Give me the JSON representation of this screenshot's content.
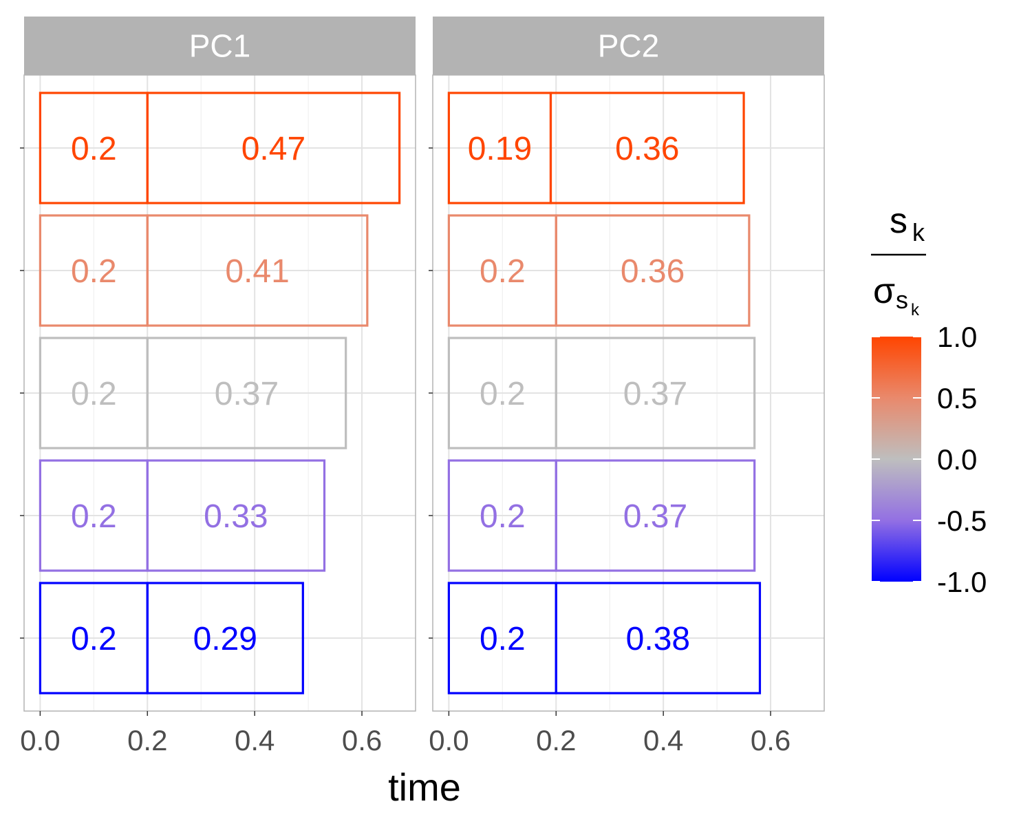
{
  "chart_data": {
    "type": "bar",
    "orientation": "horizontal",
    "stacked": true,
    "xlabel": "time",
    "xlim": [
      -0.03,
      0.7
    ],
    "xticks": [
      "0.0",
      "0.2",
      "0.4",
      "0.6"
    ],
    "xtick_values": [
      0.0,
      0.2,
      0.4,
      0.6
    ],
    "grid": true,
    "legend": {
      "title_numerator": "s",
      "title_numerator_sub": "k",
      "title_denominator": "σ",
      "title_denominator_sub": "s",
      "title_denominator_subsub": "k",
      "ticks": [
        "1.0",
        "0.5",
        "0.0",
        "-0.5",
        "-1.0"
      ],
      "tick_values": [
        1.0,
        0.5,
        0.0,
        -0.5,
        -1.0
      ],
      "range": [
        -1.0,
        1.0
      ],
      "placement": "right",
      "colors": {
        "low": "#0000ff",
        "mid": "#bebebe",
        "high": "#ff4500"
      }
    },
    "panels": [
      {
        "name": "PC1",
        "rows": [
          {
            "score": 1.0,
            "color": "#ff4500",
            "segments": [
              {
                "start": 0.0,
                "value": 0.2,
                "label": "0.2"
              },
              {
                "start": 0.2,
                "value": 0.47,
                "label": "0.47"
              }
            ]
          },
          {
            "score": 0.5,
            "color": "#e9896c",
            "segments": [
              {
                "start": 0.0,
                "value": 0.2,
                "label": "0.2"
              },
              {
                "start": 0.2,
                "value": 0.41,
                "label": "0.41"
              }
            ]
          },
          {
            "score": 0.0,
            "color": "#bebebe",
            "segments": [
              {
                "start": 0.0,
                "value": 0.2,
                "label": "0.2"
              },
              {
                "start": 0.2,
                "value": 0.37,
                "label": "0.37"
              }
            ]
          },
          {
            "score": -0.5,
            "color": "#9370e3",
            "segments": [
              {
                "start": 0.0,
                "value": 0.2,
                "label": "0.2"
              },
              {
                "start": 0.2,
                "value": 0.33,
                "label": "0.33"
              }
            ]
          },
          {
            "score": -1.0,
            "color": "#0000ff",
            "segments": [
              {
                "start": 0.0,
                "value": 0.2,
                "label": "0.2"
              },
              {
                "start": 0.2,
                "value": 0.29,
                "label": "0.29"
              }
            ]
          }
        ]
      },
      {
        "name": "PC2",
        "rows": [
          {
            "score": 1.0,
            "color": "#ff4500",
            "segments": [
              {
                "start": 0.0,
                "value": 0.19,
                "label": "0.19"
              },
              {
                "start": 0.19,
                "value": 0.36,
                "label": "0.36"
              }
            ]
          },
          {
            "score": 0.5,
            "color": "#e9896c",
            "segments": [
              {
                "start": 0.0,
                "value": 0.2,
                "label": "0.2"
              },
              {
                "start": 0.2,
                "value": 0.36,
                "label": "0.36"
              }
            ]
          },
          {
            "score": 0.0,
            "color": "#bebebe",
            "segments": [
              {
                "start": 0.0,
                "value": 0.2,
                "label": "0.2"
              },
              {
                "start": 0.2,
                "value": 0.37,
                "label": "0.37"
              }
            ]
          },
          {
            "score": -0.5,
            "color": "#9370e3",
            "segments": [
              {
                "start": 0.0,
                "value": 0.2,
                "label": "0.2"
              },
              {
                "start": 0.2,
                "value": 0.37,
                "label": "0.37"
              }
            ]
          },
          {
            "score": -1.0,
            "color": "#0000ff",
            "segments": [
              {
                "start": 0.0,
                "value": 0.2,
                "label": "0.2"
              },
              {
                "start": 0.2,
                "value": 0.38,
                "label": "0.38"
              }
            ]
          }
        ]
      }
    ]
  }
}
